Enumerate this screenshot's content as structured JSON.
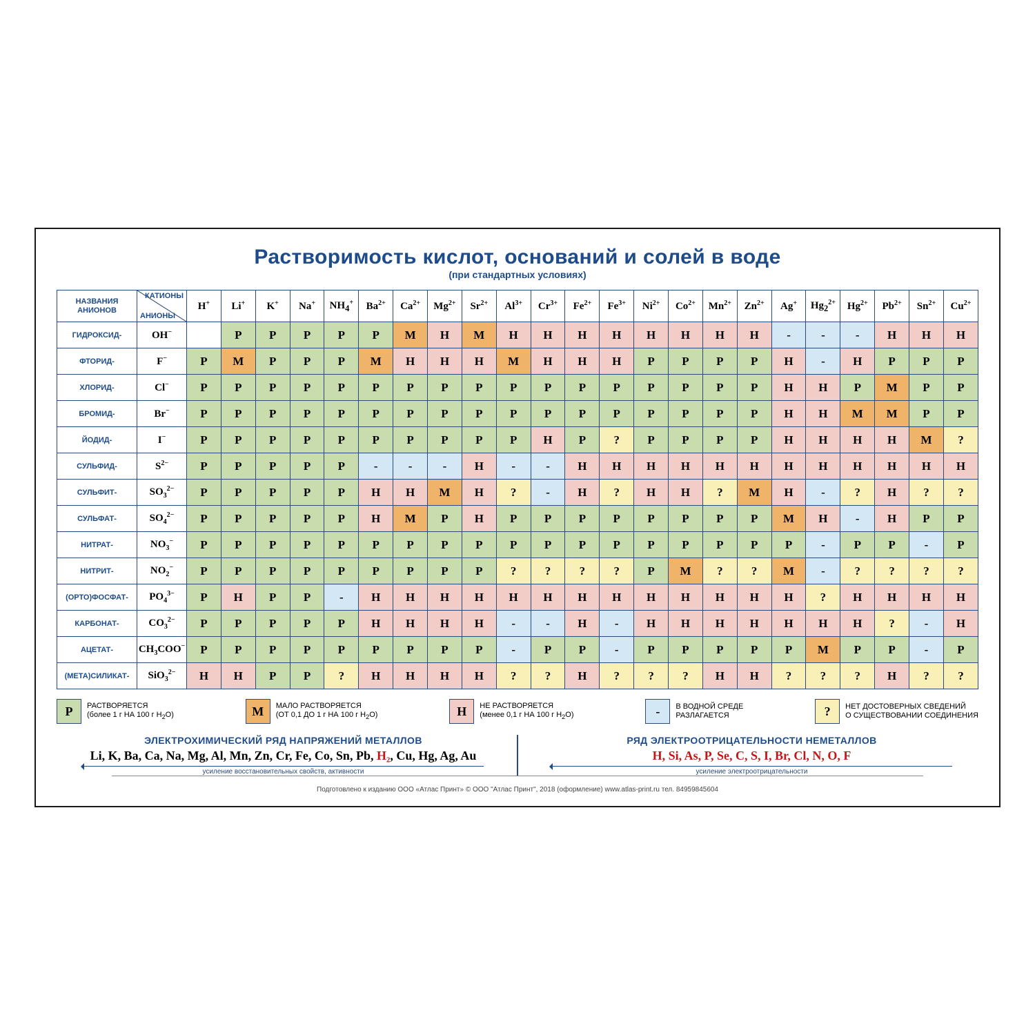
{
  "title": "Растворимость кислот, оснований и солей в воде",
  "subtitle": "(при стандартных условиях)",
  "title_color": "#1e4c8a",
  "border_color": "#2a4a7a",
  "colors": {
    "P": "#c9dcae",
    "M": "#f0b36a",
    "H": "#f2ccc6",
    "-": "#d4e7f4",
    "?": "#f9f0b8",
    "": "#ffffff"
  },
  "header": {
    "names": "НАЗВАНИЯ АНИОНОВ",
    "corner_top": "КАТИОНЫ",
    "corner_bottom": "АНИОНЫ"
  },
  "cations": [
    "H⁺",
    "Li⁺",
    "K⁺",
    "Na⁺",
    "NH₄⁺",
    "Ba²⁺",
    "Ca²⁺",
    "Mg²⁺",
    "Sr²⁺",
    "Al³⁺",
    "Cr³⁺",
    "Fe²⁺",
    "Fe³⁺",
    "Ni²⁺",
    "Co²⁺",
    "Mn²⁺",
    "Zn²⁺",
    "Ag⁺",
    "Hg₂²⁺",
    "Hg²⁺",
    "Pb²⁺",
    "Sn²⁺",
    "Cu²⁺"
  ],
  "anions": [
    {
      "name": "ГИДРОКСИД-",
      "formula": "OH⁻"
    },
    {
      "name": "ФТОРИД-",
      "formula": "F⁻"
    },
    {
      "name": "ХЛОРИД-",
      "formula": "Cl⁻"
    },
    {
      "name": "БРОМИД-",
      "formula": "Br⁻"
    },
    {
      "name": "ЙОДИД-",
      "formula": "I⁻"
    },
    {
      "name": "СУЛЬФИД-",
      "formula": "S²⁻"
    },
    {
      "name": "СУЛЬФИТ-",
      "formula": "SO₃²⁻"
    },
    {
      "name": "СУЛЬФАТ-",
      "formula": "SO₄²⁻"
    },
    {
      "name": "НИТРАТ-",
      "formula": "NO₃⁻"
    },
    {
      "name": "НИТРИТ-",
      "formula": "NO₂⁻"
    },
    {
      "name": "(ОРТО)ФОСФАТ-",
      "formula": "PO₄³⁻"
    },
    {
      "name": "КАРБОНАТ-",
      "formula": "CO₃²⁻"
    },
    {
      "name": "АЦЕТАТ-",
      "formula": "CH₃COO⁻"
    },
    {
      "name": "(МЕТА)СИЛИКАТ-",
      "formula": "SiO₃²⁻"
    }
  ],
  "cells": [
    [
      "",
      "P",
      "P",
      "P",
      "P",
      "P",
      "M",
      "H",
      "M",
      "H",
      "H",
      "H",
      "H",
      "H",
      "H",
      "H",
      "H",
      "-",
      "-",
      "-",
      "H",
      "H",
      "H"
    ],
    [
      "P",
      "M",
      "P",
      "P",
      "P",
      "M",
      "H",
      "H",
      "H",
      "M",
      "H",
      "H",
      "H",
      "P",
      "P",
      "P",
      "P",
      "H",
      "-",
      "H",
      "P",
      "P",
      "P"
    ],
    [
      "P",
      "P",
      "P",
      "P",
      "P",
      "P",
      "P",
      "P",
      "P",
      "P",
      "P",
      "P",
      "P",
      "P",
      "P",
      "P",
      "P",
      "H",
      "H",
      "P",
      "M",
      "P",
      "P"
    ],
    [
      "P",
      "P",
      "P",
      "P",
      "P",
      "P",
      "P",
      "P",
      "P",
      "P",
      "P",
      "P",
      "P",
      "P",
      "P",
      "P",
      "P",
      "H",
      "H",
      "M",
      "M",
      "P",
      "P"
    ],
    [
      "P",
      "P",
      "P",
      "P",
      "P",
      "P",
      "P",
      "P",
      "P",
      "P",
      "H",
      "P",
      "?",
      "P",
      "P",
      "P",
      "P",
      "H",
      "H",
      "H",
      "H",
      "M",
      "?"
    ],
    [
      "P",
      "P",
      "P",
      "P",
      "P",
      "-",
      "-",
      "-",
      "H",
      "-",
      "-",
      "H",
      "H",
      "H",
      "H",
      "H",
      "H",
      "H",
      "H",
      "H",
      "H",
      "H",
      "H"
    ],
    [
      "P",
      "P",
      "P",
      "P",
      "P",
      "H",
      "H",
      "M",
      "H",
      "?",
      "-",
      "H",
      "?",
      "H",
      "H",
      "?",
      "M",
      "H",
      "-",
      "?",
      "H",
      "?",
      "?"
    ],
    [
      "P",
      "P",
      "P",
      "P",
      "P",
      "H",
      "M",
      "P",
      "H",
      "P",
      "P",
      "P",
      "P",
      "P",
      "P",
      "P",
      "P",
      "M",
      "H",
      "-",
      "H",
      "P",
      "P"
    ],
    [
      "P",
      "P",
      "P",
      "P",
      "P",
      "P",
      "P",
      "P",
      "P",
      "P",
      "P",
      "P",
      "P",
      "P",
      "P",
      "P",
      "P",
      "P",
      "-",
      "P",
      "P",
      "-",
      "P"
    ],
    [
      "P",
      "P",
      "P",
      "P",
      "P",
      "P",
      "P",
      "P",
      "P",
      "?",
      "?",
      "?",
      "?",
      "P",
      "M",
      "?",
      "?",
      "M",
      "-",
      "?",
      "?",
      "?",
      "?"
    ],
    [
      "P",
      "H",
      "P",
      "P",
      "-",
      "H",
      "H",
      "H",
      "H",
      "H",
      "H",
      "H",
      "H",
      "H",
      "H",
      "H",
      "H",
      "H",
      "?",
      "H",
      "H",
      "H",
      "H"
    ],
    [
      "P",
      "P",
      "P",
      "P",
      "P",
      "H",
      "H",
      "H",
      "H",
      "-",
      "-",
      "H",
      "-",
      "H",
      "H",
      "H",
      "H",
      "H",
      "H",
      "H",
      "?",
      "-",
      "H"
    ],
    [
      "P",
      "P",
      "P",
      "P",
      "P",
      "P",
      "P",
      "P",
      "P",
      "-",
      "P",
      "P",
      "-",
      "P",
      "P",
      "P",
      "P",
      "P",
      "M",
      "P",
      "P",
      "-",
      "P"
    ],
    [
      "H",
      "H",
      "P",
      "P",
      "?",
      "H",
      "H",
      "H",
      "H",
      "?",
      "?",
      "H",
      "?",
      "?",
      "?",
      "H",
      "H",
      "?",
      "?",
      "?",
      "H",
      "?",
      "?"
    ]
  ],
  "legend": [
    {
      "sym": "P",
      "txt": "РАСТВОРЯЕТСЯ\n(более 1 г НА 100 г H₂O)"
    },
    {
      "sym": "M",
      "txt": "МАЛО РАСТВОРЯЕТСЯ\n(ОТ 0,1 ДО 1 г НА 100 г H₂O)"
    },
    {
      "sym": "H",
      "txt": "НЕ РАСТВОРЯЕТСЯ\n(менее 0,1 г НА 100 г H₂O)"
    },
    {
      "sym": "-",
      "txt": "В ВОДНОЙ СРЕДЕ\nРАЗЛАГАЕТСЯ"
    },
    {
      "sym": "?",
      "txt": "НЕТ ДОСТОВЕРНЫХ СВЕДЕНИЙ\nО СУЩЕСТВОВАНИИ СОЕДИНЕНИЯ"
    }
  ],
  "metals": {
    "header": "ЭЛЕКТРОХИМИЧЕСКИЙ РЯД НАПРЯЖЕНИЙ МЕТАЛЛОВ",
    "list_pre": "Li, K, Ba, Ca, Na, Mg, Al, Mn, Zn, Cr, Fe, Co, Sn, Pb, ",
    "list_h2": "H₂",
    "list_post": ", Cu, Hg, Ag, Au",
    "note": "усиление восстановительных свойств, активности"
  },
  "nonmetals": {
    "header": "РЯД ЭЛЕКТРООТРИЦАТЕЛЬНОСТИ НЕМЕТАЛЛОВ",
    "list": "H, Si, As, P, Se, C, S, I, Br, Cl, N, O, F",
    "list_color": "#c01818",
    "note": "усиление электроотрицательности"
  },
  "footer": "Подготовлено к изданию ООО «Атлас Принт»   © ООО \"Атлас Принт\", 2018 (оформление)   www.atlas-print.ru   тел. 84959845604"
}
